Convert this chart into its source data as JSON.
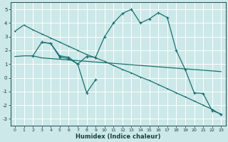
{
  "bg_color": "#cce8e8",
  "grid_color": "#ffffff",
  "line_color": "#1a7070",
  "xlabel": "Humidex (Indice chaleur)",
  "ylim": [
    -3.5,
    5.5
  ],
  "xlim": [
    -0.5,
    23.5
  ],
  "yticks": [
    -3,
    -2,
    -1,
    0,
    1,
    2,
    3,
    4,
    5
  ],
  "xticks": [
    0,
    1,
    2,
    3,
    4,
    5,
    6,
    7,
    8,
    9,
    10,
    11,
    12,
    13,
    14,
    15,
    16,
    17,
    18,
    19,
    20,
    21,
    22,
    23
  ],
  "line1_x": [
    0,
    1,
    2,
    3,
    4,
    5,
    6,
    7,
    8,
    9,
    10,
    11,
    12,
    13,
    14,
    15,
    16,
    17,
    18,
    19,
    20,
    21,
    22,
    23
  ],
  "line1_y": [
    3.4,
    3.85,
    3.5,
    3.2,
    2.9,
    2.6,
    2.3,
    2.0,
    1.7,
    1.45,
    1.2,
    0.9,
    0.6,
    0.35,
    0.05,
    -0.2,
    -0.5,
    -0.8,
    -1.1,
    -1.4,
    -1.7,
    -2.0,
    -2.3,
    -2.7
  ],
  "line2_x": [
    2,
    3,
    4,
    5,
    6,
    7,
    8,
    9,
    10,
    11,
    12,
    13,
    14,
    15,
    16,
    17,
    18,
    19,
    20,
    21,
    22,
    23
  ],
  "line2_y": [
    1.6,
    2.6,
    2.5,
    1.5,
    1.4,
    1.0,
    1.55,
    1.5,
    3.0,
    4.0,
    4.7,
    5.0,
    4.0,
    4.3,
    4.75,
    4.4,
    2.0,
    0.6,
    -1.1,
    -1.15,
    -2.4,
    -2.65
  ],
  "line3_x": [
    3,
    4,
    5,
    6,
    7,
    8,
    9
  ],
  "line3_y": [
    2.6,
    2.5,
    1.6,
    1.5,
    1.0,
    -1.1,
    -0.15
  ],
  "line4_x": [
    0,
    1,
    2,
    3,
    4,
    5,
    6,
    7,
    8,
    9,
    10,
    11,
    12,
    13,
    14,
    15,
    16,
    17,
    18,
    19,
    20,
    21,
    22,
    23
  ],
  "line4_y": [
    1.55,
    1.6,
    1.6,
    1.45,
    1.4,
    1.35,
    1.3,
    1.25,
    1.2,
    1.15,
    1.1,
    1.05,
    1.0,
    0.95,
    0.9,
    0.85,
    0.8,
    0.75,
    0.7,
    0.65,
    0.6,
    0.55,
    0.5,
    0.45
  ]
}
